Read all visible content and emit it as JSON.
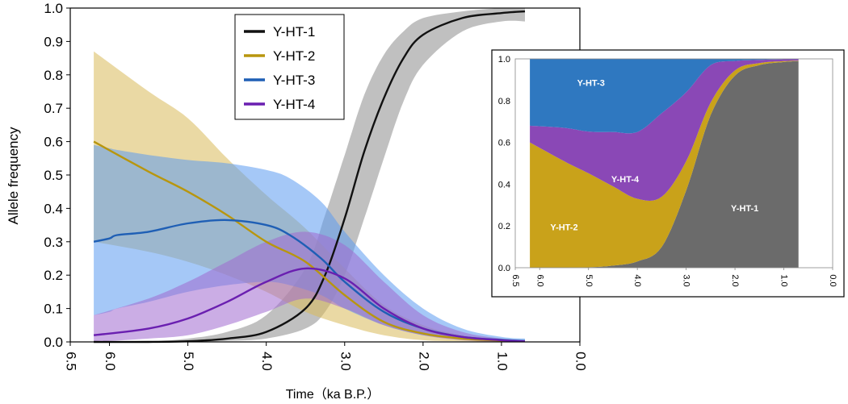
{
  "chart_data": [
    {
      "type": "line",
      "title": "",
      "xlabel": "Time（ka B.P.）",
      "ylabel": "Allele frequency",
      "xlim": [
        6.5,
        0.0
      ],
      "ylim": [
        0.0,
        1.0
      ],
      "x_ticks": [
        "6.5",
        "6.0",
        "5.0",
        "4.0",
        "3.0",
        "2.0",
        "1.0",
        "0.0"
      ],
      "y_ticks": [
        "0.0",
        "0.1",
        "0.2",
        "0.3",
        "0.4",
        "0.5",
        "0.6",
        "0.7",
        "0.8",
        "0.9",
        "1.0"
      ],
      "legend_position": "top-center",
      "series": [
        {
          "name": "Y-HT-1",
          "color": "#111111",
          "band_color": "#8c8c8c",
          "x": [
            6.2,
            5.5,
            5.0,
            4.5,
            4.0,
            3.5,
            3.25,
            3.0,
            2.75,
            2.5,
            2.25,
            2.0,
            1.5,
            1.0,
            0.7
          ],
          "values": [
            0.0,
            0.0,
            0.002,
            0.01,
            0.03,
            0.1,
            0.2,
            0.37,
            0.57,
            0.73,
            0.85,
            0.92,
            0.97,
            0.985,
            0.99
          ],
          "lower": [
            0.0,
            0.0,
            0.0,
            0.003,
            0.01,
            0.04,
            0.09,
            0.2,
            0.37,
            0.55,
            0.72,
            0.83,
            0.93,
            0.96,
            0.96
          ],
          "upper": [
            0.0,
            0.002,
            0.01,
            0.03,
            0.08,
            0.22,
            0.38,
            0.56,
            0.74,
            0.86,
            0.93,
            0.97,
            0.99,
            1.0,
            1.0
          ]
        },
        {
          "name": "Y-HT-2",
          "color": "#b8960e",
          "band_color": "#d8b95a",
          "x": [
            6.2,
            5.5,
            5.0,
            4.5,
            4.0,
            3.5,
            3.0,
            2.5,
            2.0,
            1.5,
            1.0,
            0.7
          ],
          "values": [
            0.6,
            0.51,
            0.45,
            0.38,
            0.3,
            0.24,
            0.14,
            0.06,
            0.025,
            0.01,
            0.004,
            0.002
          ],
          "lower": [
            0.3,
            0.27,
            0.24,
            0.2,
            0.15,
            0.09,
            0.05,
            0.02,
            0.005,
            0.002,
            0.0,
            0.0
          ],
          "upper": [
            0.87,
            0.75,
            0.67,
            0.55,
            0.44,
            0.34,
            0.22,
            0.11,
            0.05,
            0.02,
            0.01,
            0.005
          ]
        },
        {
          "name": "Y-HT-3",
          "color": "#1f5fb5",
          "band_color": "#5b9bf0",
          "x": [
            6.2,
            6.0,
            5.9,
            5.5,
            5.0,
            4.5,
            4.0,
            3.7,
            3.3,
            3.0,
            2.5,
            2.0,
            1.5,
            1.0,
            0.7
          ],
          "values": [
            0.3,
            0.31,
            0.32,
            0.33,
            0.355,
            0.365,
            0.35,
            0.32,
            0.25,
            0.18,
            0.09,
            0.04,
            0.015,
            0.006,
            0.003
          ],
          "lower": [
            0.08,
            0.09,
            0.1,
            0.12,
            0.15,
            0.17,
            0.18,
            0.17,
            0.14,
            0.1,
            0.05,
            0.02,
            0.008,
            0.002,
            0.0
          ],
          "upper": [
            0.59,
            0.58,
            0.575,
            0.56,
            0.545,
            0.535,
            0.515,
            0.49,
            0.42,
            0.33,
            0.2,
            0.1,
            0.04,
            0.015,
            0.01
          ]
        },
        {
          "name": "Y-HT-4",
          "color": "#6a1fb0",
          "band_color": "#a06ad0",
          "x": [
            6.2,
            5.5,
            5.0,
            4.5,
            4.0,
            3.5,
            3.0,
            2.5,
            2.0,
            1.5,
            1.0,
            0.7
          ],
          "values": [
            0.02,
            0.04,
            0.07,
            0.12,
            0.18,
            0.22,
            0.19,
            0.1,
            0.04,
            0.015,
            0.005,
            0.002
          ],
          "lower": [
            0.0,
            0.01,
            0.02,
            0.05,
            0.09,
            0.13,
            0.1,
            0.05,
            0.02,
            0.005,
            0.0,
            0.0
          ],
          "upper": [
            0.08,
            0.13,
            0.18,
            0.24,
            0.3,
            0.33,
            0.29,
            0.18,
            0.08,
            0.03,
            0.01,
            0.005
          ]
        }
      ]
    },
    {
      "type": "area",
      "stacked": true,
      "title": "",
      "xlabel": "",
      "ylabel": "",
      "xlim": [
        6.5,
        0.0
      ],
      "ylim": [
        0.0,
        1.0
      ],
      "x_ticks": [
        "6.5",
        "6.0",
        "5.0",
        "4.0",
        "3.0",
        "2.0",
        "1.0",
        "0.0"
      ],
      "y_ticks": [
        "0.0",
        "0.2",
        "0.4",
        "0.6",
        "0.8",
        "1.0"
      ],
      "x": [
        6.2,
        5.5,
        5.0,
        4.5,
        4.0,
        3.5,
        3.0,
        2.5,
        2.0,
        1.5,
        1.0,
        0.7
      ],
      "series": [
        {
          "name": "Y-HT-1",
          "color": "#6b6b6b",
          "label": "Y-HT-1",
          "label_at": [
            1.8,
            0.27
          ],
          "label_color": "#ffffff",
          "values": [
            0.0,
            0.0,
            0.002,
            0.01,
            0.03,
            0.1,
            0.37,
            0.73,
            0.92,
            0.97,
            0.985,
            0.99
          ]
        },
        {
          "name": "Y-HT-2",
          "color": "#c9a21a",
          "label": "Y-HT-2",
          "label_at": [
            5.5,
            0.18
          ],
          "label_color": "#ffffff",
          "values": [
            0.6,
            0.51,
            0.45,
            0.38,
            0.3,
            0.24,
            0.14,
            0.06,
            0.025,
            0.01,
            0.004,
            0.002
          ]
        },
        {
          "name": "Y-HT-4",
          "color": "#8a48b6",
          "label": "Y-HT-4",
          "label_at": [
            4.25,
            0.41
          ],
          "label_color": "#ffffff",
          "values": [
            0.08,
            0.16,
            0.2,
            0.26,
            0.32,
            0.4,
            0.33,
            0.18,
            0.045,
            0.015,
            0.009,
            0.006
          ]
        },
        {
          "name": "Y-HT-3",
          "color": "#2f78c0",
          "label": "Y-HT-3",
          "label_at": [
            4.95,
            0.87
          ],
          "label_color": "#ffffff",
          "values": [
            0.32,
            0.33,
            0.348,
            0.35,
            0.35,
            0.26,
            0.16,
            0.03,
            0.01,
            0.005,
            0.002,
            0.002
          ]
        }
      ]
    }
  ]
}
